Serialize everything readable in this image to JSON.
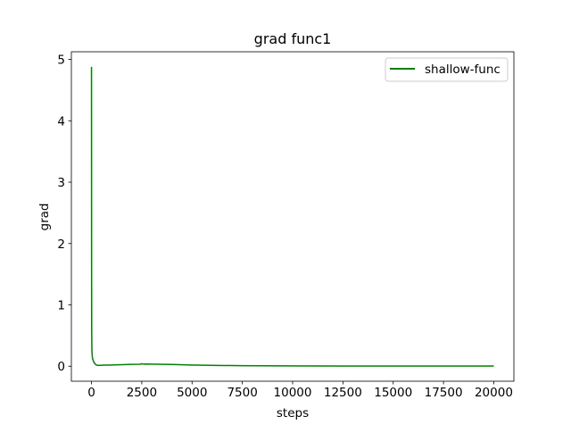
{
  "chart_data": {
    "type": "line",
    "title": "grad func1",
    "xlabel": "steps",
    "ylabel": "grad",
    "xlim": [
      -1000,
      21000
    ],
    "ylim": [
      -0.244,
      5.125
    ],
    "x_ticks": [
      0,
      2500,
      5000,
      7500,
      10000,
      12500,
      15000,
      17500,
      20000
    ],
    "x_tick_labels": [
      "0",
      "2500",
      "5000",
      "7500",
      "10000",
      "12500",
      "15000",
      "17500",
      "20000"
    ],
    "y_ticks": [
      0,
      1,
      2,
      3,
      4,
      5
    ],
    "y_tick_labels": [
      "0",
      "1",
      "2",
      "3",
      "4",
      "5"
    ],
    "grid": false,
    "legend_position": "top-right",
    "series": [
      {
        "name": "shallow-func",
        "color": "#008000",
        "x": [
          0,
          5,
          10,
          20,
          40,
          60,
          100,
          150,
          200,
          250,
          300,
          400,
          600,
          1000,
          1500,
          2000,
          2400,
          2500,
          2600,
          2700,
          3000,
          4000,
          5000,
          6000,
          7500,
          10000,
          12500,
          15000,
          17500,
          20000
        ],
        "y": [
          4.88,
          1.5,
          0.6,
          0.25,
          0.16,
          0.12,
          0.08,
          0.05,
          0.03,
          0.02,
          0.015,
          0.015,
          0.018,
          0.02,
          0.025,
          0.03,
          0.033,
          0.04,
          0.035,
          0.036,
          0.035,
          0.028,
          0.02,
          0.014,
          0.009,
          0.005,
          0.004,
          0.003,
          0.003,
          0.003
        ]
      }
    ]
  }
}
